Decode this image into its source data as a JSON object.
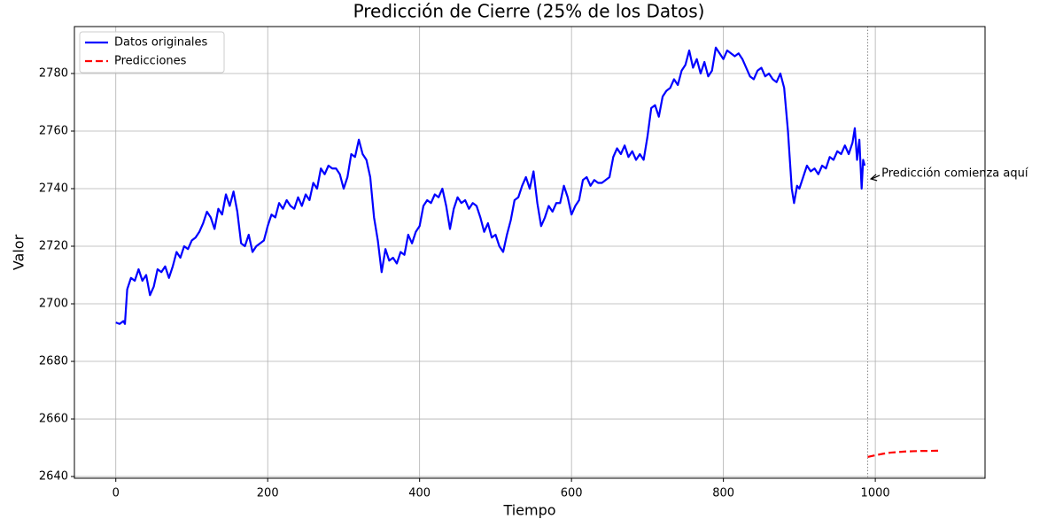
{
  "chart_data": {
    "type": "line",
    "title": "Predicción de Cierre (25% de los Datos)",
    "x_label": "Tiempo",
    "y_label": "Valor",
    "xlim": [
      -54.5,
      1144.5
    ],
    "ylim": [
      2639.4,
      2796.3
    ],
    "xticks": [
      0,
      200,
      400,
      600,
      800,
      1000
    ],
    "yticks": [
      2640,
      2660,
      2680,
      2700,
      2720,
      2740,
      2760,
      2780
    ],
    "grid": true,
    "legend": "upper left",
    "vline": 990,
    "annotation": {
      "text": "Predicción comienza aquí",
      "x": 993,
      "y": 2743.4
    },
    "series": [
      {
        "name": "Datos originales",
        "color": "#0000ff",
        "linestyle": "solid",
        "x": [
          0,
          5,
          10,
          12,
          15,
          20,
          25,
          30,
          35,
          40,
          45,
          50,
          55,
          60,
          65,
          70,
          75,
          80,
          85,
          90,
          95,
          100,
          105,
          110,
          115,
          120,
          125,
          130,
          135,
          140,
          145,
          150,
          155,
          160,
          165,
          170,
          175,
          180,
          185,
          190,
          195,
          200,
          205,
          210,
          215,
          220,
          225,
          230,
          235,
          240,
          245,
          250,
          255,
          260,
          265,
          270,
          275,
          280,
          285,
          290,
          295,
          300,
          305,
          310,
          315,
          320,
          325,
          330,
          335,
          340,
          345,
          350,
          355,
          360,
          365,
          370,
          375,
          380,
          385,
          390,
          395,
          400,
          405,
          410,
          415,
          420,
          425,
          430,
          435,
          440,
          445,
          450,
          455,
          460,
          465,
          470,
          475,
          480,
          485,
          490,
          495,
          500,
          505,
          510,
          515,
          520,
          525,
          530,
          535,
          540,
          545,
          550,
          555,
          560,
          565,
          570,
          575,
          580,
          585,
          590,
          595,
          600,
          605,
          610,
          615,
          620,
          625,
          630,
          635,
          640,
          645,
          650,
          655,
          660,
          665,
          670,
          675,
          680,
          685,
          690,
          695,
          700,
          705,
          710,
          715,
          720,
          725,
          730,
          735,
          740,
          745,
          750,
          755,
          760,
          765,
          770,
          775,
          780,
          785,
          790,
          795,
          800,
          805,
          810,
          815,
          820,
          825,
          830,
          835,
          840,
          845,
          850,
          855,
          860,
          865,
          870,
          875,
          880,
          885,
          890,
          893,
          897,
          900,
          905,
          910,
          915,
          920,
          925,
          930,
          935,
          940,
          945,
          950,
          955,
          960,
          965,
          970,
          973,
          976,
          979,
          982,
          984,
          986
        ],
        "values": [
          2693.5,
          2693,
          2694,
          2693,
          2705,
          2709,
          2708,
          2712,
          2708,
          2710,
          2703,
          2706,
          2712,
          2711,
          2713,
          2709,
          2713,
          2718,
          2716,
          2720,
          2719,
          2722,
          2723,
          2725,
          2728,
          2732,
          2730,
          2726,
          2733,
          2731,
          2738,
          2734,
          2739,
          2732,
          2721,
          2720,
          2724,
          2718,
          2720,
          2721,
          2722,
          2727,
          2731,
          2730,
          2735,
          2733,
          2736,
          2734,
          2733,
          2737,
          2734,
          2738,
          2736,
          2742,
          2740,
          2747,
          2745,
          2748,
          2747,
          2747,
          2745,
          2740,
          2744,
          2752,
          2751,
          2757,
          2752,
          2750,
          2744,
          2730,
          2722,
          2711,
          2719,
          2715,
          2716,
          2714,
          2718,
          2717,
          2724,
          2721,
          2725,
          2727,
          2734,
          2736,
          2735,
          2738,
          2737,
          2740,
          2734,
          2726,
          2733,
          2737,
          2735,
          2736,
          2733,
          2735,
          2734,
          2730,
          2725,
          2728,
          2723,
          2724,
          2720,
          2718,
          2724,
          2729,
          2736,
          2737,
          2741,
          2744,
          2740,
          2746,
          2735,
          2727,
          2730,
          2734,
          2732,
          2735,
          2735,
          2741,
          2737,
          2731,
          2734,
          2736,
          2743,
          2744,
          2741,
          2743,
          2742,
          2742,
          2743,
          2744,
          2751,
          2754,
          2752,
          2755,
          2751,
          2753,
          2750,
          2752,
          2750,
          2758,
          2768,
          2769,
          2765,
          2772,
          2774,
          2775,
          2778,
          2776,
          2781,
          2783,
          2788,
          2782,
          2785,
          2780,
          2784,
          2779,
          2781,
          2789,
          2787,
          2785,
          2788,
          2787,
          2786,
          2787,
          2785,
          2782,
          2779,
          2778,
          2781,
          2782,
          2779,
          2780,
          2778,
          2777,
          2780,
          2775,
          2760,
          2740,
          2735,
          2741,
          2740,
          2744,
          2748,
          2746,
          2747,
          2745,
          2748,
          2747,
          2751,
          2750,
          2753,
          2752,
          2755,
          2752,
          2756,
          2761,
          2750,
          2757,
          2740,
          2750,
          2748
        ]
      },
      {
        "name": "Predicciones",
        "color": "#ff0000",
        "linestyle": "dashed",
        "x": [
          990,
          1000,
          1010,
          1020,
          1030,
          1040,
          1050,
          1060,
          1070,
          1085
        ],
        "values": [
          2646.8,
          2647.4,
          2647.9,
          2648.3,
          2648.5,
          2648.7,
          2648.8,
          2648.9,
          2648.9,
          2649
        ]
      }
    ]
  }
}
